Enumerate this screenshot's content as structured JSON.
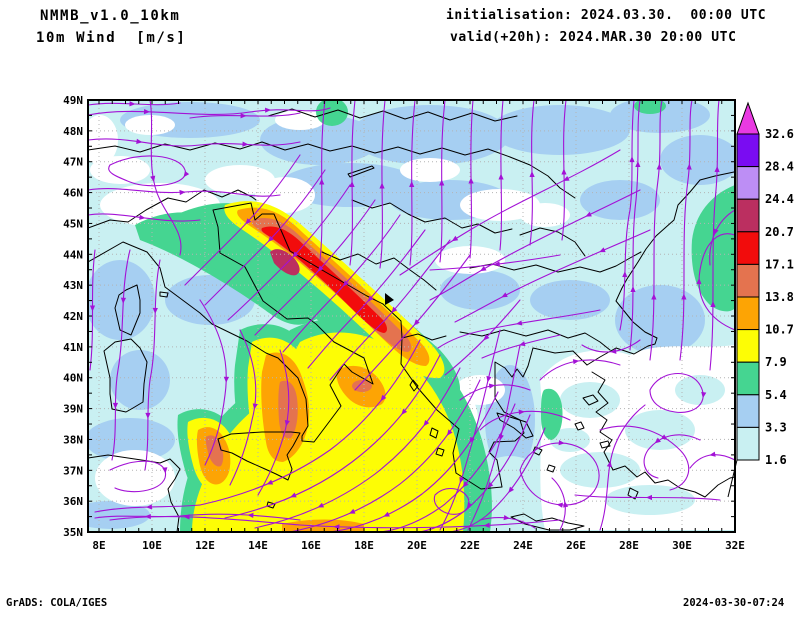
{
  "header": {
    "model": "NMMB_v1.0_10km",
    "field": "10m Wind  [m/s]",
    "init": "initialisation: 2024.03.30.  00:00 UTC",
    "valid": "valid(+20h): 2024.MAR.30 20:00 UTC"
  },
  "footer": {
    "left": "GrADS: COLA/IGES",
    "right": "2024-03-30-07:24"
  },
  "axes": {
    "lat_labels": [
      "49N",
      "48N",
      "47N",
      "46N",
      "45N",
      "44N",
      "43N",
      "42N",
      "41N",
      "40N",
      "39N",
      "38N",
      "37N",
      "36N",
      "35N"
    ],
    "lon_labels": [
      "8E",
      "10E",
      "12E",
      "14E",
      "16E",
      "18E",
      "20E",
      "22E",
      "24E",
      "26E",
      "28E",
      "30E",
      "32E"
    ]
  },
  "colorbar": {
    "levels": [
      "32.6",
      "28.4",
      "24.4",
      "20.7",
      "17.1",
      "13.8",
      "10.7",
      "7.9",
      "5.4",
      "3.3",
      "1.6"
    ],
    "colors_top_to_bottom": [
      "#e93ae2",
      "#7a0cf2",
      "#bd8ef5",
      "#bb2f60",
      "#f20c0c",
      "#e4734f",
      "#fda404",
      "#fdfd05",
      "#45d591",
      "#a6cff2",
      "#c9f0f2"
    ]
  },
  "palette": {
    "calm": "#ffffff",
    "c1": "#c9f0f2",
    "c2": "#a6cff2",
    "c3": "#45d591",
    "c4": "#fdfd05",
    "c5": "#fda404",
    "c6": "#e4734f",
    "c7": "#f20c0c",
    "c8": "#bb2f60",
    "stream": "#a312d6",
    "coast": "#000000",
    "grid": "#b4b4b4",
    "frame": "#000000"
  }
}
